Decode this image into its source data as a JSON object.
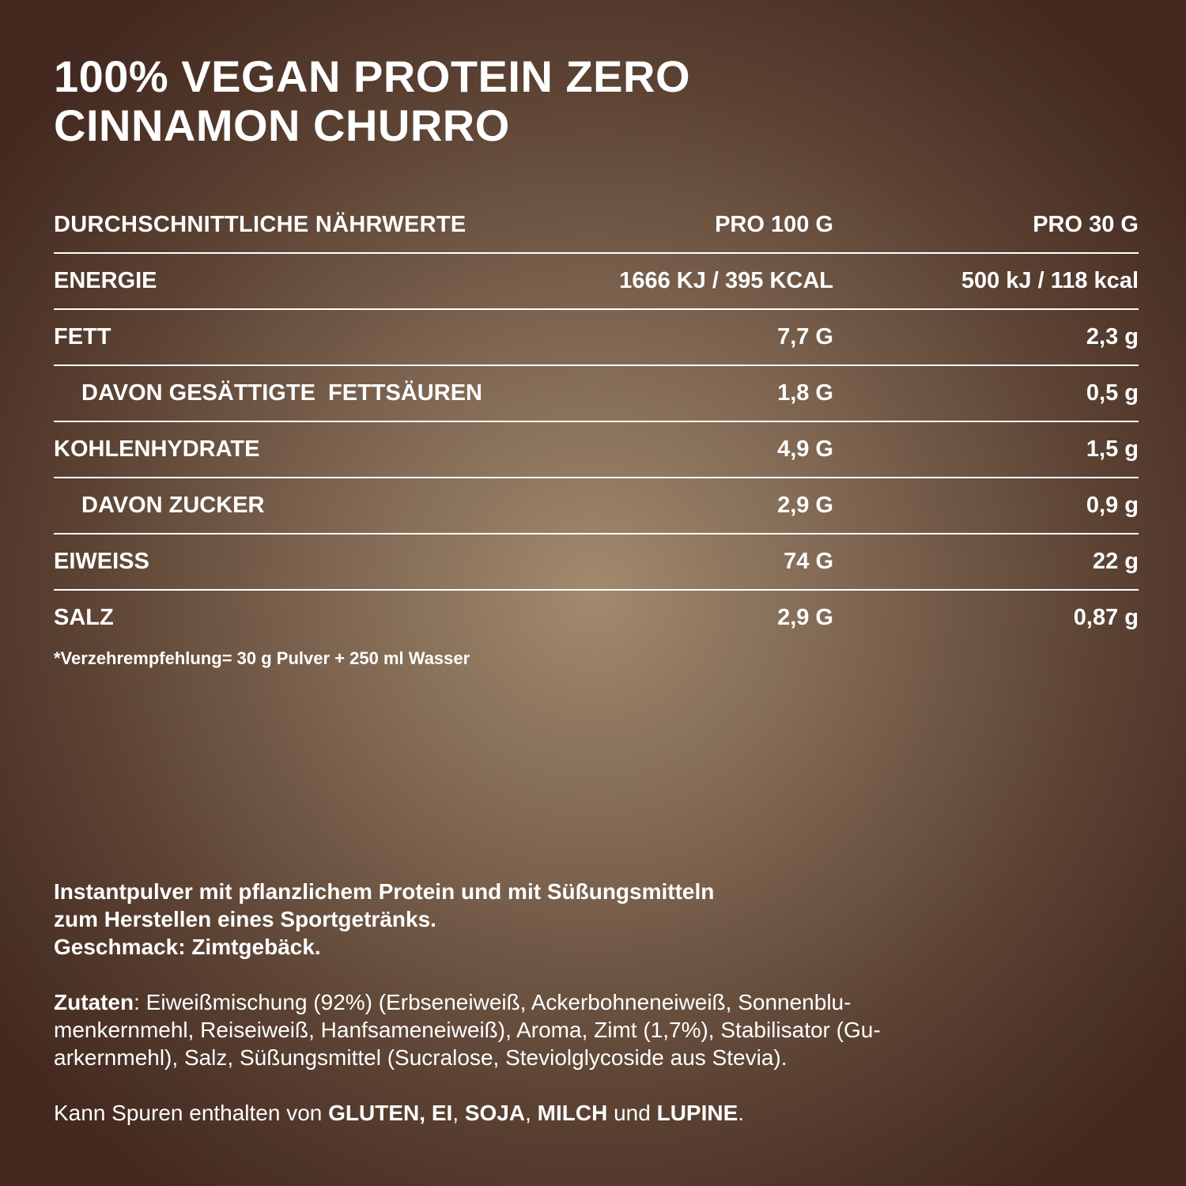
{
  "title": {
    "line1": "100% VEGAN PROTEIN ZERO",
    "line2": "CINNAMON CHURRO"
  },
  "table": {
    "header": {
      "label": "DURCHSCHNITTLICHE NÄHRWERTE",
      "per100": "PRO 100 G",
      "per30": "PRO 30 G"
    },
    "rows": [
      {
        "label": "ENERGIE",
        "per100": "1666 KJ / 395 KCAL",
        "per30": "500 kJ / 118 kcal"
      },
      {
        "label": "FETT",
        "per100": "7,7 G",
        "per30": "2,3 g"
      },
      {
        "label": "DAVON GESÄTTIGTE  FETTSÄUREN",
        "per100": "1,8 G",
        "per30": "0,5 g"
      },
      {
        "label": "KOHLENHYDRATE",
        "per100": "4,9 G",
        "per30": "1,5 g"
      },
      {
        "label": "DAVON ZUCKER",
        "per100": "2,9 G",
        "per30": "0,9 g"
      },
      {
        "label": "EIWEISS",
        "per100": "74 G",
        "per30": "22 g"
      },
      {
        "label": "SALZ",
        "per100": "2,9 G",
        "per30": "0,87 g"
      }
    ]
  },
  "footnote": "*Verzehrempfehlung= 30 g Pulver + 250 ml Wasser",
  "description": {
    "line1": "Instantpulver mit pflanzlichem Protein und mit Süßungsmitteln",
    "line2": "zum Herstellen eines Sportgetränks.",
    "line3": "Geschmack: Zimtgebäck."
  },
  "ingredients": {
    "label": "Zutaten",
    "line1": ": Eiweißmischung (92%) (Erbseneiweiß, Ackerbohneneiweiß, Sonnenblu-",
    "line2": "menkernmehl, Reiseiweiß, Hanfsameneiweiß), Aroma, Zimt (1,7%), Stabilisator (Gu-",
    "line3": "arkernmehl), Salz, Süßungsmittel (Sucralose, Steviolglycoside aus Stevia)."
  },
  "traces": {
    "intro": "Kann Spuren enthalten von ",
    "allergen1": "GLUTEN, EI",
    "sep1": ", ",
    "allergen2": "SOJA",
    "sep2": ", ",
    "allergen3": "MILCH",
    "sep3": " und ",
    "allergen4": "LUPINE",
    "end": "."
  }
}
